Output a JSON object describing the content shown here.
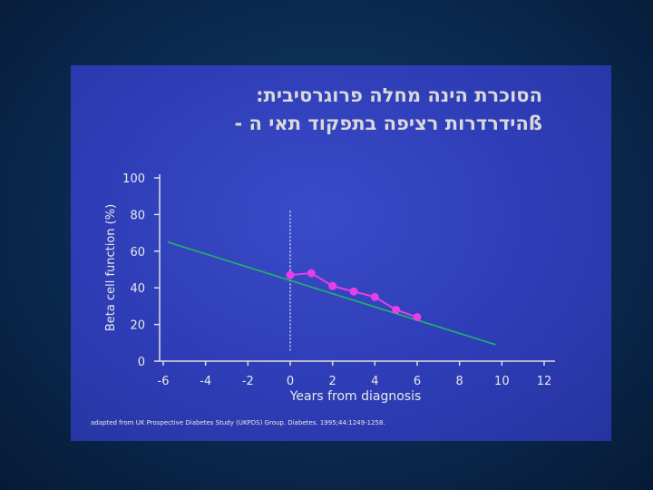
{
  "slide": {
    "title_line1": "הסוכרת הינה מחלה פרוגרסיבית:",
    "title_line2": "ßהידרדרות רציפה בתפקוד תאי ה -",
    "footnote": "adapted from UK Prospective Diabetes Study (UKPDS) Group. Diabetes. 1995;44:1249-1258."
  },
  "chart_data": {
    "type": "line",
    "xlabel": "Years from diagnosis",
    "ylabel": "Beta cell function (%)",
    "xlim": [
      -6,
      12
    ],
    "ylim": [
      0,
      100
    ],
    "x_ticks": [
      "-6",
      "-4",
      "-2",
      "0",
      "2",
      "4",
      "6",
      "8",
      "10",
      "12"
    ],
    "y_ticks": [
      "100",
      "80",
      "60",
      "40",
      "20",
      "0"
    ],
    "grid": false,
    "vertical_reference_line_x": 0,
    "series": [
      {
        "kind": "trend",
        "x": [
          -5.8,
          9.7
        ],
        "y": [
          65,
          9
        ],
        "color": "#21b368"
      },
      {
        "kind": "observed",
        "x": [
          0,
          1,
          2,
          3,
          4,
          5,
          6
        ],
        "y": [
          47,
          48,
          41,
          38,
          35,
          28,
          24
        ],
        "color": "#e83ee8"
      }
    ]
  }
}
